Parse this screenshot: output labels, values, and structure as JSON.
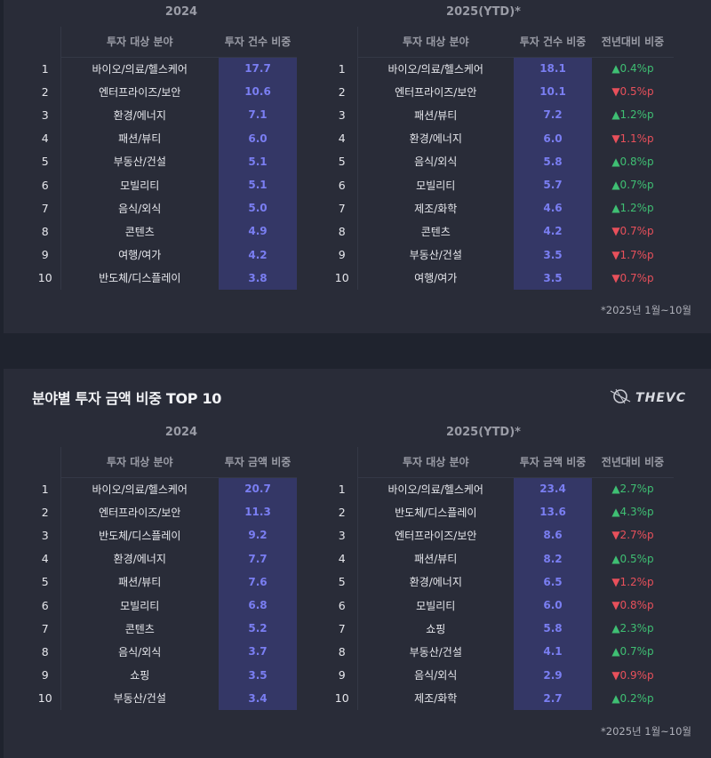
{
  "count_section": {
    "left": {
      "year": "2024",
      "headers": {
        "field": "투자 대상 분야",
        "value": "투자 건수 비중"
      },
      "rows": [
        {
          "rank": "1",
          "field": "바이오/의료/헬스케어",
          "value": "17.7"
        },
        {
          "rank": "2",
          "field": "엔터프라이즈/보안",
          "value": "10.6"
        },
        {
          "rank": "3",
          "field": "환경/에너지",
          "value": "7.1"
        },
        {
          "rank": "4",
          "field": "패션/뷰티",
          "value": "6.0"
        },
        {
          "rank": "5",
          "field": "부동산/건설",
          "value": "5.1"
        },
        {
          "rank": "6",
          "field": "모빌리티",
          "value": "5.1"
        },
        {
          "rank": "7",
          "field": "음식/외식",
          "value": "5.0"
        },
        {
          "rank": "8",
          "field": "콘텐츠",
          "value": "4.9"
        },
        {
          "rank": "9",
          "field": "여행/여가",
          "value": "4.2"
        },
        {
          "rank": "10",
          "field": "반도체/디스플레이",
          "value": "3.8"
        }
      ]
    },
    "right": {
      "year": "2025(YTD)*",
      "headers": {
        "field": "투자 대상 분야",
        "value": "투자 건수 비중",
        "change": "전년대비 비중"
      },
      "rows": [
        {
          "rank": "1",
          "field": "바이오/의료/헬스케어",
          "value": "18.1",
          "change": "▲0.4%p",
          "dir": "up"
        },
        {
          "rank": "2",
          "field": "엔터프라이즈/보안",
          "value": "10.1",
          "change": "▼0.5%p",
          "dir": "down"
        },
        {
          "rank": "3",
          "field": "패션/뷰티",
          "value": "7.2",
          "change": "▲1.2%p",
          "dir": "up"
        },
        {
          "rank": "4",
          "field": "환경/에너지",
          "value": "6.0",
          "change": "▼1.1%p",
          "dir": "down"
        },
        {
          "rank": "5",
          "field": "음식/외식",
          "value": "5.8",
          "change": "▲0.8%p",
          "dir": "up"
        },
        {
          "rank": "6",
          "field": "모빌리티",
          "value": "5.7",
          "change": "▲0.7%p",
          "dir": "up"
        },
        {
          "rank": "7",
          "field": "제조/화학",
          "value": "4.6",
          "change": "▲1.2%p",
          "dir": "up"
        },
        {
          "rank": "8",
          "field": "콘텐츠",
          "value": "4.2",
          "change": "▼0.7%p",
          "dir": "down"
        },
        {
          "rank": "9",
          "field": "부동산/건설",
          "value": "3.5",
          "change": "▼1.7%p",
          "dir": "down"
        },
        {
          "rank": "10",
          "field": "여행/여가",
          "value": "3.5",
          "change": "▼0.7%p",
          "dir": "down"
        }
      ]
    },
    "note": "*2025년 1월~10월"
  },
  "amount_section": {
    "title": "분야별 투자 금액 비중 TOP 10",
    "brand": "THEVC",
    "left": {
      "year": "2024",
      "headers": {
        "field": "투자 대상 분야",
        "value": "투자 금액 비중"
      },
      "rows": [
        {
          "rank": "1",
          "field": "바이오/의료/헬스케어",
          "value": "20.7"
        },
        {
          "rank": "2",
          "field": "엔터프라이즈/보안",
          "value": "11.3"
        },
        {
          "rank": "3",
          "field": "반도체/디스플레이",
          "value": "9.2"
        },
        {
          "rank": "4",
          "field": "환경/에너지",
          "value": "7.7"
        },
        {
          "rank": "5",
          "field": "패션/뷰티",
          "value": "7.6"
        },
        {
          "rank": "6",
          "field": "모빌리티",
          "value": "6.8"
        },
        {
          "rank": "7",
          "field": "콘텐츠",
          "value": "5.2"
        },
        {
          "rank": "8",
          "field": "음식/외식",
          "value": "3.7"
        },
        {
          "rank": "9",
          "field": "쇼핑",
          "value": "3.5"
        },
        {
          "rank": "10",
          "field": "부동산/건설",
          "value": "3.4"
        }
      ]
    },
    "right": {
      "year": "2025(YTD)*",
      "headers": {
        "field": "투자 대상 분야",
        "value": "투자 금액 비중",
        "change": "전년대비 비중"
      },
      "rows": [
        {
          "rank": "1",
          "field": "바이오/의료/헬스케어",
          "value": "23.4",
          "change": "▲2.7%p",
          "dir": "up"
        },
        {
          "rank": "2",
          "field": "반도체/디스플레이",
          "value": "13.6",
          "change": "▲4.3%p",
          "dir": "up"
        },
        {
          "rank": "3",
          "field": "엔터프라이즈/보안",
          "value": "8.6",
          "change": "▼2.7%p",
          "dir": "down"
        },
        {
          "rank": "4",
          "field": "패션/뷰티",
          "value": "8.2",
          "change": "▲0.5%p",
          "dir": "up"
        },
        {
          "rank": "5",
          "field": "환경/에너지",
          "value": "6.5",
          "change": "▼1.2%p",
          "dir": "down"
        },
        {
          "rank": "6",
          "field": "모빌리티",
          "value": "6.0",
          "change": "▼0.8%p",
          "dir": "down"
        },
        {
          "rank": "7",
          "field": "쇼핑",
          "value": "5.8",
          "change": "▲2.3%p",
          "dir": "up"
        },
        {
          "rank": "8",
          "field": "부동산/건설",
          "value": "4.1",
          "change": "▲0.7%p",
          "dir": "up"
        },
        {
          "rank": "9",
          "field": "음식/외식",
          "value": "2.9",
          "change": "▼0.9%p",
          "dir": "down"
        },
        {
          "rank": "10",
          "field": "제조/화학",
          "value": "2.7",
          "change": "▲0.2%p",
          "dir": "up"
        }
      ]
    },
    "note": "*2025년 1월~10월"
  },
  "colors": {
    "page_bg": "#1f232e",
    "panel_bg": "#292c38",
    "highlight_bg": "#343766",
    "highlight_text": "#7a7ef2",
    "up": "#3fbf73",
    "down": "#e8505b"
  }
}
